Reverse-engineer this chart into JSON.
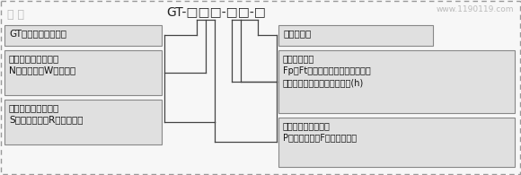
{
  "bg_color": "#f7f7f7",
  "box_fill": "#e0e0e0",
  "box_edge": "#888888",
  "line_color": "#444444",
  "text_color": "#111111",
  "watermark_color": "#bbbbbb",
  "formula": "GT-□□□-□□-□",
  "watermark_left": "磐 龙",
  "watermark_right": "www.1190119.com",
  "box1_text": "GT：逢结构防火涂料",
  "box2_text": "使用场所特征代号：\nN代表室内，W代表室外",
  "box3_text": "分散介质特征代号：\nS代表水基性，R代表溶剤性",
  "box4_text": "企业自定义",
  "box5_text": "主参数代号：\nFp、Ft分别代表示普通、特种逢结\n构防火涂料，数値为耐火极限(h)",
  "box6_text": "防火机理特征代号：\nP代表膨胀型，F代表非膨胀型"
}
